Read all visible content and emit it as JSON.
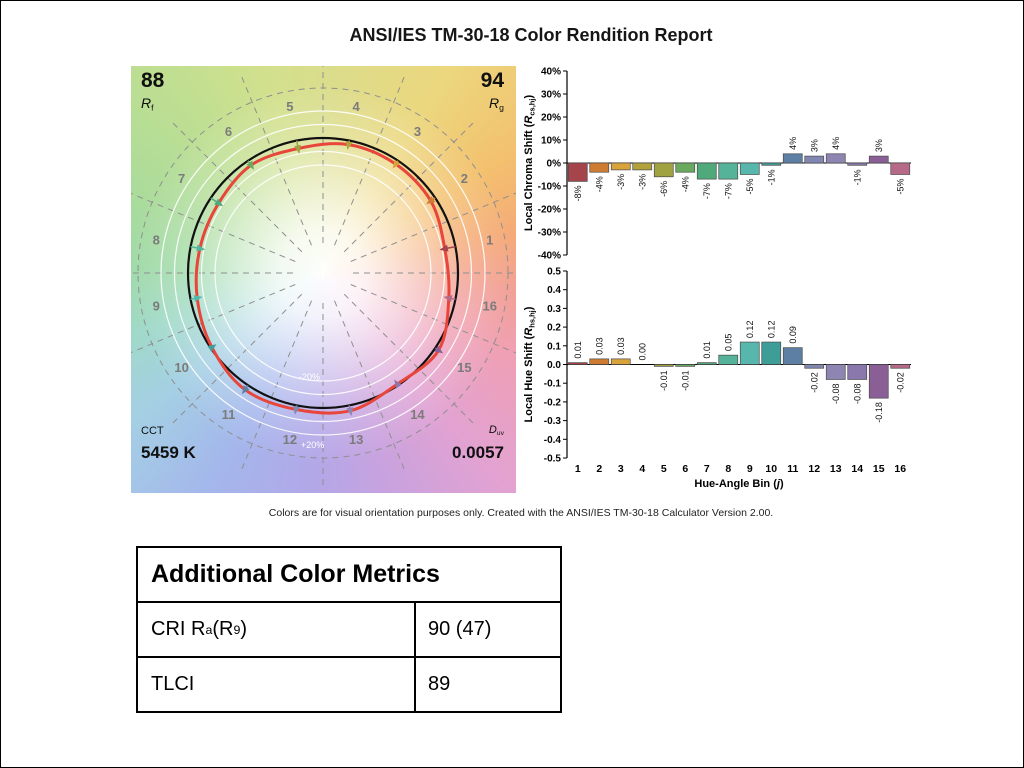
{
  "title": "ANSI/IES TM-30-18 Color Rendition Report",
  "caption": "Colors are for visual orientation purposes only. Created with the ANSI/IES TM-30-18 Calculator Version 2.00.",
  "vector_graphic": {
    "rf": {
      "value": "88",
      "symbol": "R",
      "sub": "f"
    },
    "rg": {
      "value": "94",
      "symbol": "R",
      "sub": "g"
    },
    "cct": {
      "label": "CCT",
      "value": "5459 K"
    },
    "duv": {
      "symbol": "D",
      "sub": "uv",
      "value": "0.0057"
    },
    "ring_labels": {
      "minus20": "-20%",
      "plus20": "+20%"
    }
  },
  "metrics_table": {
    "title": "Additional Color Metrics",
    "cri": {
      "pre": "CRI R",
      "sub1": "a",
      "mid": " (R",
      "sub2": "9",
      "post": ")",
      "value": "90 (47)"
    },
    "tlci": {
      "label": "TLCI",
      "value": "89"
    }
  },
  "bin_colors": [
    "#a6444c",
    "#cf7c33",
    "#d9a33c",
    "#b3a23c",
    "#a0a242",
    "#6aaa5e",
    "#4fa97b",
    "#54b398",
    "#57b7ad",
    "#3f9d98",
    "#5c7fa3",
    "#8187b0",
    "#8f85b3",
    "#8a77ab",
    "#8a5f96",
    "#b76a88"
  ],
  "chart_data": [
    {
      "type": "bar",
      "title": "Local Chroma Shift",
      "ylabel": "Local Chroma Shift (Rcs,hj)",
      "ylabel_parts": {
        "pre": "Local Chroma Shift (",
        "sym": "R",
        "sub": "cs,hj",
        "post": ")"
      },
      "categories": [
        "1",
        "2",
        "3",
        "4",
        "5",
        "6",
        "7",
        "8",
        "9",
        "10",
        "11",
        "12",
        "13",
        "14",
        "15",
        "16"
      ],
      "values": [
        -8,
        -4,
        -3,
        -3,
        -6,
        -4,
        -7,
        -7,
        -5,
        -1,
        4,
        3,
        4,
        -1,
        3,
        -5
      ],
      "value_labels": [
        "-8%",
        "-4%",
        "-3%",
        "-3%",
        "-6%",
        "-4%",
        "-7%",
        "-7%",
        "-5%",
        "-1%",
        "4%",
        "3%",
        "4%",
        "-1%",
        "3%",
        "-5%"
      ],
      "unit": "%",
      "ylim": [
        -40,
        40
      ],
      "ytick_labels": [
        "40%",
        "30%",
        "20%",
        "10%",
        "0%",
        "-10%",
        "-20%",
        "-30%",
        "-40%"
      ],
      "grid": false,
      "legend": false
    },
    {
      "type": "bar",
      "title": "Local Hue Shift",
      "ylabel": "Local Hue Shift (Rhs,hj)",
      "ylabel_parts": {
        "pre": "Local Hue Shift (",
        "sym": "R",
        "sub": "hs,hj",
        "post": ")"
      },
      "xlabel": "Hue-Angle Bin (j)",
      "xlabel_parts": {
        "pre": "Hue-Angle Bin (",
        "sym": "j",
        "post": ")"
      },
      "categories": [
        "1",
        "2",
        "3",
        "4",
        "5",
        "6",
        "7",
        "8",
        "9",
        "10",
        "11",
        "12",
        "13",
        "14",
        "15",
        "16"
      ],
      "values": [
        0.01,
        0.03,
        0.03,
        0.0,
        -0.01,
        -0.01,
        0.01,
        0.05,
        0.12,
        0.12,
        0.09,
        -0.02,
        -0.08,
        -0.08,
        -0.18,
        -0.02
      ],
      "value_labels": [
        "0.01",
        "0.03",
        "0.03",
        "0.00",
        "-0.01",
        "-0.01",
        "0.01",
        "0.05",
        "0.12",
        "0.12",
        "0.09",
        "-0.02",
        "-0.08",
        "-0.08",
        "-0.18",
        "-0.02"
      ],
      "ylim": [
        -0.5,
        0.5
      ],
      "ytick_labels": [
        "0.5",
        "0.4",
        "0.3",
        "0.2",
        "0.1",
        "0.0",
        "-0.1",
        "-0.2",
        "-0.3",
        "-0.4",
        "-0.5"
      ],
      "grid": false,
      "legend": false
    }
  ]
}
